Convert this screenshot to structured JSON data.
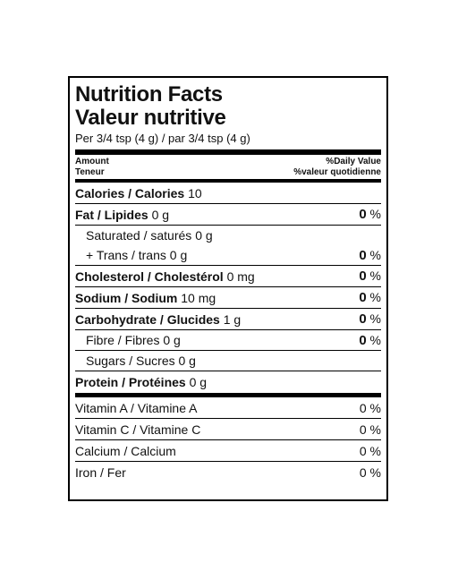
{
  "header": {
    "title_en": "Nutrition Facts",
    "title_fr": "Valeur nutritive",
    "serving": "Per 3/4 tsp (4 g) / par 3/4 tsp (4 g)"
  },
  "columns": {
    "amount_en": "Amount",
    "amount_fr": "Teneur",
    "dv_en": "%Daily Value",
    "dv_fr": "%valeur quotidienne"
  },
  "nutrients": [
    {
      "name": "Calories / Calories",
      "amount": "10"
    },
    {
      "name": "Fat / Lipides",
      "amount": "0 g",
      "daily_value": "0",
      "unit": "%"
    },
    {
      "name": "Saturated / saturés",
      "amount": "0 g"
    },
    {
      "name": "+ Trans / trans",
      "amount": "0 g",
      "daily_value": "0",
      "unit": "%"
    },
    {
      "name": "Cholesterol / Cholestérol",
      "amount": "0 mg",
      "daily_value": "0",
      "unit": "%"
    },
    {
      "name": "Sodium / Sodium",
      "amount": "10 mg",
      "daily_value": "0",
      "unit": "%"
    },
    {
      "name": "Carbohydrate / Glucides",
      "amount": "1 g",
      "daily_value": "0",
      "unit": "%"
    },
    {
      "name": "Fibre / Fibres",
      "amount": "0 g",
      "daily_value": "0",
      "unit": "%"
    },
    {
      "name": "Sugars / Sucres",
      "amount": "0 g"
    },
    {
      "name": "Protein / Protéines",
      "amount": "0 g"
    }
  ],
  "vitamins": [
    {
      "name": "Vitamin A / Vitamine A",
      "daily_value": "0 %"
    },
    {
      "name": "Vitamin C / Vitamine C",
      "daily_value": "0 %"
    },
    {
      "name": "Calcium / Calcium",
      "daily_value": "0 %"
    },
    {
      "name": "Iron / Fer",
      "daily_value": "0 %"
    }
  ]
}
